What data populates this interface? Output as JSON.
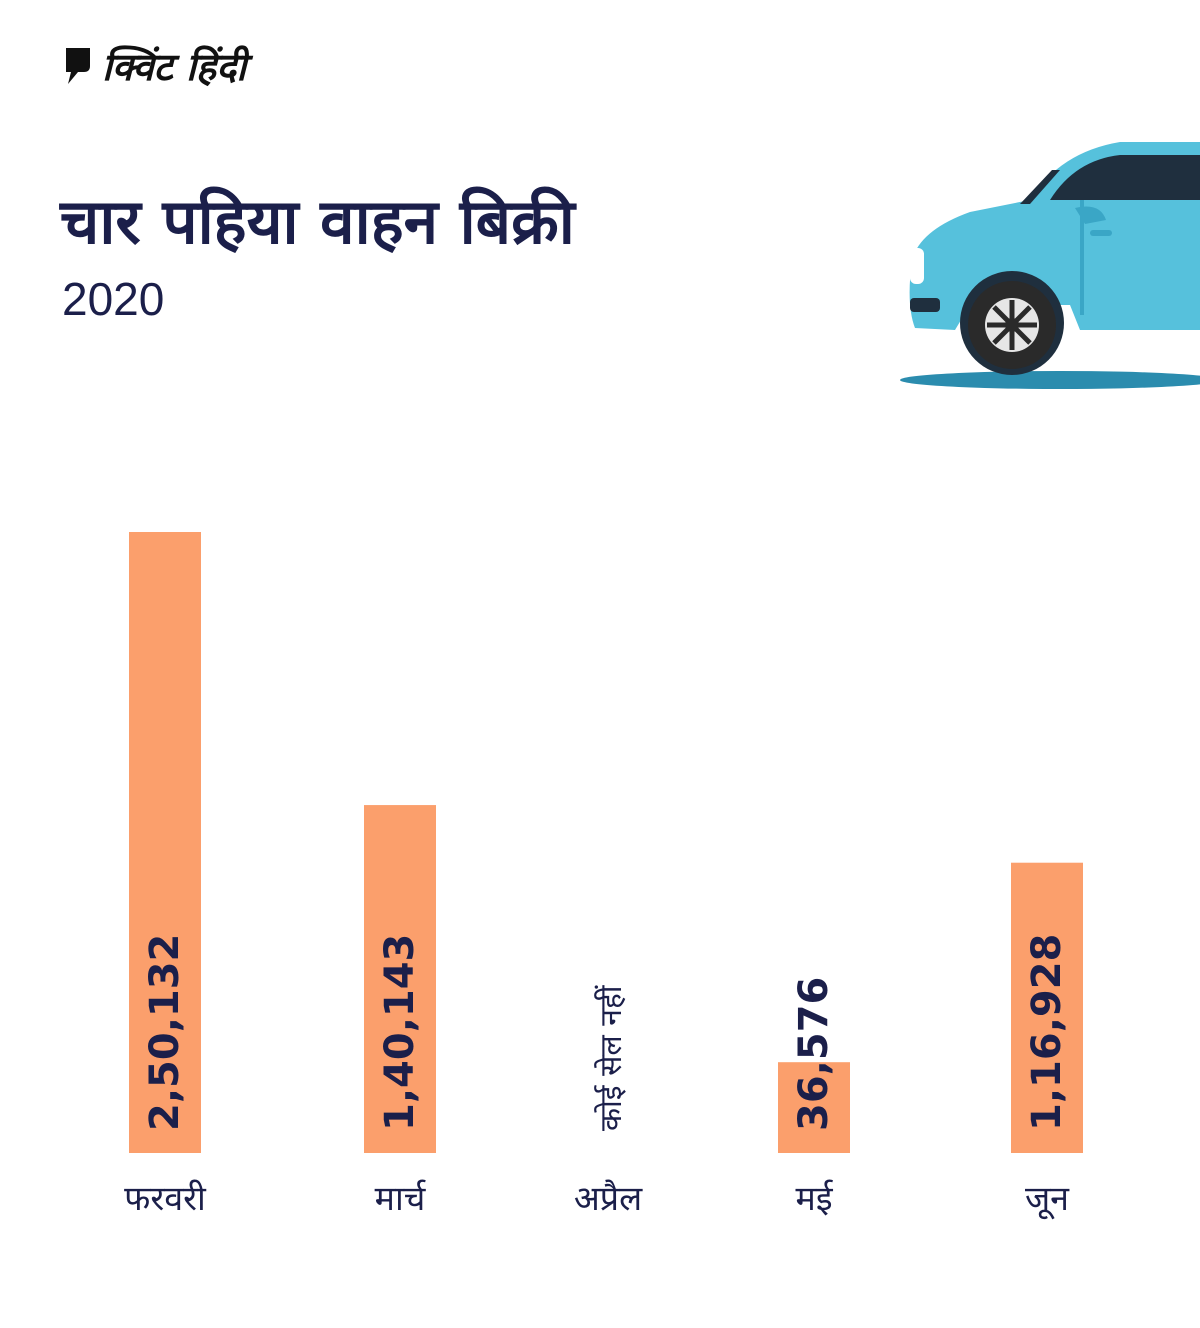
{
  "brand": {
    "name": "क्विंट हिंदी",
    "icon": "quote-bubble-icon"
  },
  "colors": {
    "bar": "#fb9f6c",
    "text": "#1b1f4a",
    "car": "#56c1dc",
    "shadow": "#2b8cae"
  },
  "chart_data": {
    "type": "bar",
    "title": "चार पहिया वाहन बिक्री",
    "subtitle": "2020",
    "xlabel": "",
    "ylabel": "",
    "ylim": [
      0,
      250132
    ],
    "categories": [
      "फरवरी",
      "मार्च",
      "अप्रैल",
      "मई",
      "जून"
    ],
    "values": [
      250132,
      140143,
      0,
      36576,
      116928
    ],
    "value_labels": [
      "2,50,132",
      "1,40,143",
      "कोई सेल नहीं",
      "36,576",
      "1,16,928"
    ],
    "grid": false
  }
}
